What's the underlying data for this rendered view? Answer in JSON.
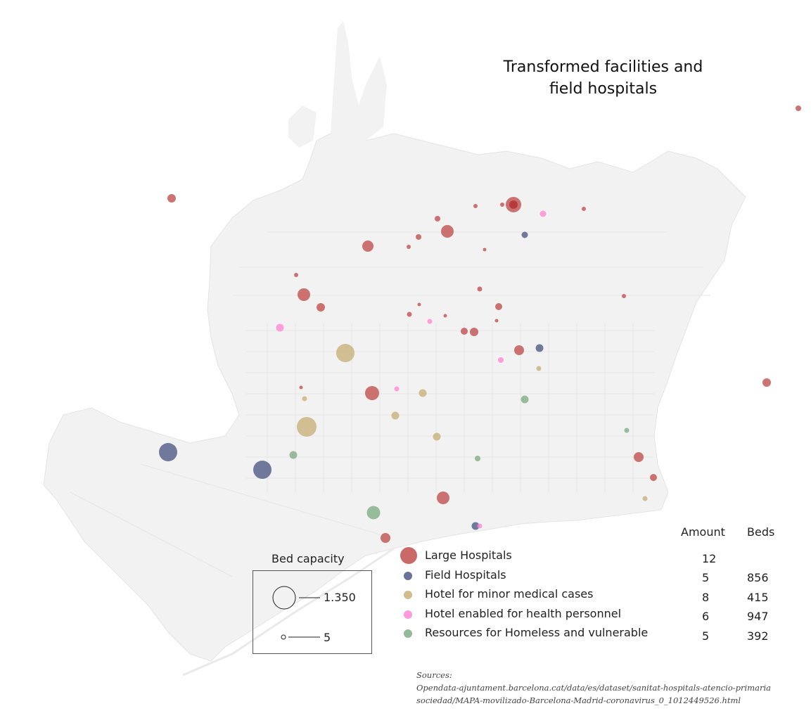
{
  "title": {
    "line1": "Transformed facilities and",
    "line2": "field hospitals"
  },
  "colors": {
    "large_hospital": "#c0504d",
    "field_hospital": "#4f5a86",
    "hotel_minor": "#c9b07a",
    "hotel_health": "#ff88d4",
    "homeless": "#7fae85",
    "land": "#f1f1f1",
    "streets": "#e6e6e6"
  },
  "bed_capacity": {
    "title": "Bed capacity",
    "max_label": "1.350",
    "min_label": "5"
  },
  "legend": {
    "header_amount": "Amount",
    "header_beds": "Beds",
    "rows": [
      {
        "key": "large_hospital",
        "label": "Large Hospitals",
        "amount": "12",
        "beds": ""
      },
      {
        "key": "field_hospital",
        "label": "Field Hospitals",
        "amount": "5",
        "beds": "856"
      },
      {
        "key": "hotel_minor",
        "label": "Hotel for minor medical cases",
        "amount": "8",
        "beds": "415"
      },
      {
        "key": "hotel_health",
        "label": "Hotel enabled for health personnel",
        "amount": "6",
        "beds": "947"
      },
      {
        "key": "homeless",
        "label": "Resources for Homeless and vulnerable",
        "amount": "5",
        "beds": "392"
      }
    ]
  },
  "sources": {
    "label": "Sources:",
    "line1": "Opendata-ajuntament.barcelona.cat/data/es/dataset/sanitat-hospitals-atencio-primaria",
    "line2": "sociedad/MAPA-movilizado-Barcelona-Madrid-coronavirus_0_1012449526.html"
  }
}
